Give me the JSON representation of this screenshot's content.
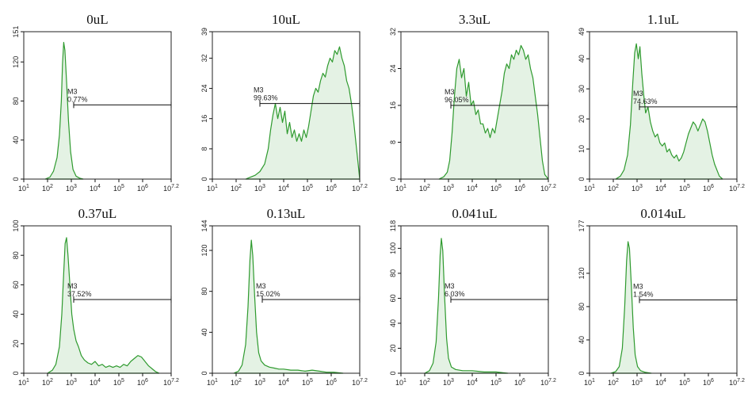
{
  "chart_data": [
    {
      "type": "area",
      "title": "0uL",
      "x_scale": "log",
      "xlim": [
        1,
        7.2
      ],
      "x_ticks": [
        {
          "base": "10",
          "exp": "1"
        },
        {
          "base": "10",
          "exp": "2"
        },
        {
          "base": "10",
          "exp": "3"
        },
        {
          "base": "10",
          "exp": "4"
        },
        {
          "base": "10",
          "exp": "5"
        },
        {
          "base": "10",
          "exp": "6"
        },
        {
          "base": "10",
          "exp": "7.2"
        }
      ],
      "ylim": [
        0,
        151
      ],
      "y_ticks": [
        "0",
        "40",
        "80",
        "120",
        "151"
      ],
      "gate": {
        "name": "M3",
        "percent": "0.77%",
        "x_start": 3.1,
        "x_end": 7.2,
        "y": 76
      },
      "points": [
        [
          1.9,
          0
        ],
        [
          2.1,
          2
        ],
        [
          2.25,
          8
        ],
        [
          2.4,
          22
        ],
        [
          2.5,
          45
        ],
        [
          2.58,
          80
        ],
        [
          2.63,
          118
        ],
        [
          2.68,
          140
        ],
        [
          2.73,
          132
        ],
        [
          2.8,
          100
        ],
        [
          2.88,
          60
        ],
        [
          2.97,
          28
        ],
        [
          3.07,
          10
        ],
        [
          3.2,
          3
        ],
        [
          3.35,
          1
        ],
        [
          3.5,
          0
        ]
      ]
    },
    {
      "type": "area",
      "title": "10uL",
      "x_scale": "log",
      "xlim": [
        1,
        7.2
      ],
      "x_ticks": [
        {
          "base": "10",
          "exp": "1"
        },
        {
          "base": "10",
          "exp": "2"
        },
        {
          "base": "10",
          "exp": "3"
        },
        {
          "base": "10",
          "exp": "4"
        },
        {
          "base": "10",
          "exp": "5"
        },
        {
          "base": "10",
          "exp": "6"
        },
        {
          "base": "10",
          "exp": "7.2"
        }
      ],
      "ylim": [
        0,
        39
      ],
      "y_ticks": [
        "0",
        "8",
        "16",
        "24",
        "32",
        "39"
      ],
      "gate": {
        "name": "M3",
        "percent": "99.63%",
        "x_start": 3.0,
        "x_end": 7.2,
        "y": 20
      },
      "points": [
        [
          2.4,
          0
        ],
        [
          2.6,
          0.5
        ],
        [
          2.8,
          1
        ],
        [
          3.0,
          2
        ],
        [
          3.2,
          4
        ],
        [
          3.35,
          8
        ],
        [
          3.45,
          13
        ],
        [
          3.55,
          17
        ],
        [
          3.65,
          20
        ],
        [
          3.75,
          16
        ],
        [
          3.85,
          19
        ],
        [
          3.95,
          15
        ],
        [
          4.05,
          18
        ],
        [
          4.15,
          12
        ],
        [
          4.25,
          15
        ],
        [
          4.35,
          11
        ],
        [
          4.45,
          13
        ],
        [
          4.55,
          10
        ],
        [
          4.65,
          12
        ],
        [
          4.75,
          10
        ],
        [
          4.85,
          13
        ],
        [
          4.95,
          11
        ],
        [
          5.05,
          14
        ],
        [
          5.15,
          18
        ],
        [
          5.25,
          22
        ],
        [
          5.35,
          24
        ],
        [
          5.45,
          23
        ],
        [
          5.55,
          26
        ],
        [
          5.65,
          28
        ],
        [
          5.75,
          27
        ],
        [
          5.85,
          30
        ],
        [
          5.95,
          32
        ],
        [
          6.05,
          31
        ],
        [
          6.15,
          34
        ],
        [
          6.25,
          33
        ],
        [
          6.35,
          35
        ],
        [
          6.45,
          32
        ],
        [
          6.55,
          30
        ],
        [
          6.65,
          26
        ],
        [
          6.75,
          24
        ],
        [
          6.85,
          20
        ],
        [
          6.95,
          15
        ],
        [
          7.05,
          9
        ],
        [
          7.15,
          3
        ],
        [
          7.2,
          0
        ]
      ]
    },
    {
      "type": "area",
      "title": "3.3uL",
      "x_scale": "log",
      "xlim": [
        1,
        7.2
      ],
      "x_ticks": [
        {
          "base": "10",
          "exp": "1"
        },
        {
          "base": "10",
          "exp": "2"
        },
        {
          "base": "10",
          "exp": "3"
        },
        {
          "base": "10",
          "exp": "4"
        },
        {
          "base": "10",
          "exp": "5"
        },
        {
          "base": "10",
          "exp": "6"
        },
        {
          "base": "10",
          "exp": "7.2"
        }
      ],
      "ylim": [
        0,
        32
      ],
      "y_ticks": [
        "0",
        "8",
        "16",
        "24",
        "32"
      ],
      "gate": {
        "name": "M3",
        "percent": "96.05%",
        "x_start": 3.1,
        "x_end": 7.2,
        "y": 16
      },
      "points": [
        [
          2.6,
          0
        ],
        [
          2.8,
          0.5
        ],
        [
          2.95,
          1.5
        ],
        [
          3.05,
          4
        ],
        [
          3.15,
          10
        ],
        [
          3.25,
          18
        ],
        [
          3.35,
          24
        ],
        [
          3.45,
          26
        ],
        [
          3.55,
          22
        ],
        [
          3.65,
          24
        ],
        [
          3.75,
          18
        ],
        [
          3.85,
          21
        ],
        [
          3.95,
          16
        ],
        [
          4.05,
          17
        ],
        [
          4.15,
          14
        ],
        [
          4.25,
          15
        ],
        [
          4.35,
          12
        ],
        [
          4.45,
          12
        ],
        [
          4.55,
          10
        ],
        [
          4.65,
          11
        ],
        [
          4.75,
          9
        ],
        [
          4.85,
          11
        ],
        [
          4.95,
          10
        ],
        [
          5.05,
          13
        ],
        [
          5.15,
          16
        ],
        [
          5.25,
          19
        ],
        [
          5.35,
          23
        ],
        [
          5.45,
          25
        ],
        [
          5.55,
          24
        ],
        [
          5.65,
          27
        ],
        [
          5.75,
          26
        ],
        [
          5.85,
          28
        ],
        [
          5.95,
          27
        ],
        [
          6.05,
          29
        ],
        [
          6.15,
          28
        ],
        [
          6.25,
          26
        ],
        [
          6.35,
          27
        ],
        [
          6.45,
          24
        ],
        [
          6.55,
          22
        ],
        [
          6.65,
          18
        ],
        [
          6.75,
          14
        ],
        [
          6.85,
          9
        ],
        [
          6.95,
          4
        ],
        [
          7.05,
          1
        ],
        [
          7.2,
          0
        ]
      ]
    },
    {
      "type": "area",
      "title": "1.1uL",
      "x_scale": "log",
      "xlim": [
        1,
        7.2
      ],
      "x_ticks": [
        {
          "base": "10",
          "exp": "1"
        },
        {
          "base": "10",
          "exp": "2"
        },
        {
          "base": "10",
          "exp": "3"
        },
        {
          "base": "10",
          "exp": "4"
        },
        {
          "base": "10",
          "exp": "5"
        },
        {
          "base": "10",
          "exp": "6"
        },
        {
          "base": "10",
          "exp": "7.2"
        }
      ],
      "ylim": [
        0,
        49
      ],
      "y_ticks": [
        "0",
        "10",
        "20",
        "30",
        "40",
        "49"
      ],
      "gate": {
        "name": "M3",
        "percent": "74.63%",
        "x_start": 3.1,
        "x_end": 7.2,
        "y": 24
      },
      "points": [
        [
          2.1,
          0
        ],
        [
          2.3,
          1
        ],
        [
          2.45,
          3
        ],
        [
          2.6,
          8
        ],
        [
          2.72,
          18
        ],
        [
          2.82,
          32
        ],
        [
          2.9,
          42
        ],
        [
          2.97,
          45
        ],
        [
          3.05,
          40
        ],
        [
          3.12,
          44
        ],
        [
          3.2,
          35
        ],
        [
          3.28,
          28
        ],
        [
          3.36,
          22
        ],
        [
          3.46,
          24
        ],
        [
          3.56,
          19
        ],
        [
          3.66,
          16
        ],
        [
          3.76,
          14
        ],
        [
          3.86,
          15
        ],
        [
          3.96,
          12
        ],
        [
          4.06,
          11
        ],
        [
          4.16,
          12
        ],
        [
          4.26,
          9
        ],
        [
          4.36,
          10
        ],
        [
          4.46,
          8
        ],
        [
          4.56,
          7
        ],
        [
          4.66,
          8
        ],
        [
          4.76,
          6
        ],
        [
          4.86,
          7
        ],
        [
          4.96,
          9
        ],
        [
          5.06,
          12
        ],
        [
          5.16,
          15
        ],
        [
          5.26,
          17
        ],
        [
          5.36,
          19
        ],
        [
          5.46,
          18
        ],
        [
          5.56,
          16
        ],
        [
          5.66,
          18
        ],
        [
          5.76,
          20
        ],
        [
          5.86,
          19
        ],
        [
          5.96,
          16
        ],
        [
          6.06,
          12
        ],
        [
          6.16,
          8
        ],
        [
          6.26,
          5
        ],
        [
          6.36,
          3
        ],
        [
          6.46,
          1
        ],
        [
          6.6,
          0
        ]
      ]
    },
    {
      "type": "area",
      "title": "0.37uL",
      "x_scale": "log",
      "xlim": [
        1,
        7.2
      ],
      "x_ticks": [
        {
          "base": "10",
          "exp": "1"
        },
        {
          "base": "10",
          "exp": "2"
        },
        {
          "base": "10",
          "exp": "3"
        },
        {
          "base": "10",
          "exp": "4"
        },
        {
          "base": "10",
          "exp": "5"
        },
        {
          "base": "10",
          "exp": "6"
        },
        {
          "base": "10",
          "exp": "7.2"
        }
      ],
      "ylim": [
        0,
        100
      ],
      "y_ticks": [
        "0",
        "20",
        "40",
        "60",
        "80",
        "100"
      ],
      "gate": {
        "name": "M3",
        "percent": "37.52%",
        "x_start": 3.1,
        "x_end": 7.2,
        "y": 50
      },
      "points": [
        [
          2.0,
          0
        ],
        [
          2.2,
          2
        ],
        [
          2.35,
          6
        ],
        [
          2.5,
          18
        ],
        [
          2.6,
          40
        ],
        [
          2.68,
          68
        ],
        [
          2.74,
          88
        ],
        [
          2.8,
          92
        ],
        [
          2.86,
          80
        ],
        [
          2.94,
          60
        ],
        [
          3.02,
          40
        ],
        [
          3.1,
          30
        ],
        [
          3.2,
          22
        ],
        [
          3.3,
          18
        ],
        [
          3.42,
          12
        ],
        [
          3.55,
          9
        ],
        [
          3.7,
          7
        ],
        [
          3.85,
          6
        ],
        [
          4.0,
          8
        ],
        [
          4.15,
          5
        ],
        [
          4.3,
          6
        ],
        [
          4.45,
          4
        ],
        [
          4.6,
          5
        ],
        [
          4.75,
          4
        ],
        [
          4.9,
          5
        ],
        [
          5.05,
          4
        ],
        [
          5.2,
          6
        ],
        [
          5.35,
          5
        ],
        [
          5.5,
          8
        ],
        [
          5.65,
          10
        ],
        [
          5.8,
          12
        ],
        [
          5.95,
          11
        ],
        [
          6.1,
          8
        ],
        [
          6.25,
          5
        ],
        [
          6.4,
          3
        ],
        [
          6.55,
          1
        ],
        [
          6.7,
          0
        ]
      ]
    },
    {
      "type": "area",
      "title": "0.13uL",
      "x_scale": "log",
      "xlim": [
        1,
        7.2
      ],
      "x_ticks": [
        {
          "base": "10",
          "exp": "1"
        },
        {
          "base": "10",
          "exp": "2"
        },
        {
          "base": "10",
          "exp": "3"
        },
        {
          "base": "10",
          "exp": "4"
        },
        {
          "base": "10",
          "exp": "5"
        },
        {
          "base": "10",
          "exp": "6"
        },
        {
          "base": "10",
          "exp": "7.2"
        }
      ],
      "ylim": [
        0,
        144
      ],
      "y_ticks": [
        "0",
        "40",
        "80",
        "120",
        "144"
      ],
      "gate": {
        "name": "M3",
        "percent": "15.02%",
        "x_start": 3.1,
        "x_end": 7.2,
        "y": 72
      },
      "points": [
        [
          1.9,
          0
        ],
        [
          2.1,
          2
        ],
        [
          2.25,
          8
        ],
        [
          2.4,
          28
        ],
        [
          2.5,
          65
        ],
        [
          2.58,
          110
        ],
        [
          2.64,
          130
        ],
        [
          2.7,
          115
        ],
        [
          2.78,
          75
        ],
        [
          2.86,
          40
        ],
        [
          2.95,
          20
        ],
        [
          3.05,
          12
        ],
        [
          3.2,
          8
        ],
        [
          3.4,
          6
        ],
        [
          3.6,
          5
        ],
        [
          3.8,
          4
        ],
        [
          4.0,
          4
        ],
        [
          4.3,
          3
        ],
        [
          4.6,
          3
        ],
        [
          4.9,
          2
        ],
        [
          5.2,
          3
        ],
        [
          5.5,
          2
        ],
        [
          5.8,
          1
        ],
        [
          6.1,
          1
        ],
        [
          6.5,
          0
        ]
      ]
    },
    {
      "type": "area",
      "title": "0.041uL",
      "x_scale": "log",
      "xlim": [
        1,
        7.2
      ],
      "x_ticks": [
        {
          "base": "10",
          "exp": "1"
        },
        {
          "base": "10",
          "exp": "2"
        },
        {
          "base": "10",
          "exp": "3"
        },
        {
          "base": "10",
          "exp": "4"
        },
        {
          "base": "10",
          "exp": "5"
        },
        {
          "base": "10",
          "exp": "6"
        },
        {
          "base": "10",
          "exp": "7.2"
        }
      ],
      "ylim": [
        0,
        118
      ],
      "y_ticks": [
        "0",
        "20",
        "40",
        "60",
        "80",
        "100",
        "118"
      ],
      "gate": {
        "name": "M3",
        "percent": "6.03%",
        "x_start": 3.1,
        "x_end": 7.2,
        "y": 59
      },
      "points": [
        [
          2.0,
          0
        ],
        [
          2.2,
          2
        ],
        [
          2.35,
          8
        ],
        [
          2.48,
          25
        ],
        [
          2.58,
          60
        ],
        [
          2.65,
          95
        ],
        [
          2.7,
          108
        ],
        [
          2.76,
          98
        ],
        [
          2.84,
          60
        ],
        [
          2.92,
          28
        ],
        [
          3.0,
          12
        ],
        [
          3.12,
          5
        ],
        [
          3.3,
          3
        ],
        [
          3.6,
          2
        ],
        [
          4.0,
          2
        ],
        [
          4.5,
          1
        ],
        [
          5.0,
          1
        ],
        [
          5.5,
          0
        ]
      ]
    },
    {
      "type": "area",
      "title": "0.014uL",
      "x_scale": "log",
      "xlim": [
        1,
        7.2
      ],
      "x_ticks": [
        {
          "base": "10",
          "exp": "1"
        },
        {
          "base": "10",
          "exp": "2"
        },
        {
          "base": "10",
          "exp": "3"
        },
        {
          "base": "10",
          "exp": "4"
        },
        {
          "base": "10",
          "exp": "5"
        },
        {
          "base": "10",
          "exp": "6"
        },
        {
          "base": "10",
          "exp": "7.2"
        }
      ],
      "ylim": [
        0,
        177
      ],
      "y_ticks": [
        "0",
        "40",
        "80",
        "120",
        "177"
      ],
      "gate": {
        "name": "M3",
        "percent": "1.54%",
        "x_start": 3.1,
        "x_end": 7.2,
        "y": 88
      },
      "points": [
        [
          1.9,
          0
        ],
        [
          2.1,
          2
        ],
        [
          2.25,
          8
        ],
        [
          2.38,
          30
        ],
        [
          2.48,
          80
        ],
        [
          2.56,
          135
        ],
        [
          2.62,
          158
        ],
        [
          2.68,
          150
        ],
        [
          2.76,
          105
        ],
        [
          2.84,
          55
        ],
        [
          2.92,
          22
        ],
        [
          3.02,
          8
        ],
        [
          3.15,
          3
        ],
        [
          3.35,
          1
        ],
        [
          3.6,
          0
        ]
      ]
    }
  ]
}
